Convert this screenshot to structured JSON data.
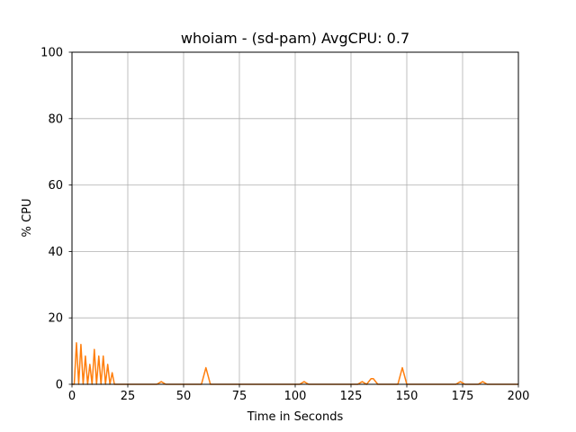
{
  "chart_data": {
    "type": "line",
    "title": "whoiam - (sd-pam) AvgCPU: 0.7",
    "xlabel": "Time in Seconds",
    "ylabel": "% CPU",
    "xlim": [
      0,
      200
    ],
    "ylim": [
      0,
      100
    ],
    "xticks": [
      0,
      25,
      50,
      75,
      100,
      125,
      150,
      175,
      200
    ],
    "yticks": [
      0,
      20,
      40,
      60,
      80,
      100
    ],
    "grid": true,
    "series": [
      {
        "color": "#ff7f0e",
        "x": [
          0,
          1,
          2,
          3,
          4,
          5,
          6,
          7,
          8,
          9,
          10,
          11,
          12,
          13,
          14,
          15,
          16,
          17,
          18,
          19,
          38,
          40,
          42,
          58,
          60,
          62,
          102,
          104,
          106,
          128,
          130,
          132,
          134,
          135,
          137,
          146,
          148,
          150,
          172,
          174,
          176,
          182,
          184,
          186,
          200
        ],
        "y": [
          0,
          0,
          12.5,
          0,
          12,
          0,
          8.5,
          0,
          6,
          0,
          10.5,
          0,
          8.5,
          0,
          8.5,
          0,
          6,
          0,
          3.5,
          0,
          0,
          0.8,
          0,
          0,
          5,
          0,
          0,
          0.8,
          0,
          0,
          0.8,
          0,
          1.7,
          1.7,
          0,
          0,
          5,
          0,
          0,
          0.8,
          0,
          0,
          0.8,
          0,
          0
        ]
      }
    ]
  }
}
